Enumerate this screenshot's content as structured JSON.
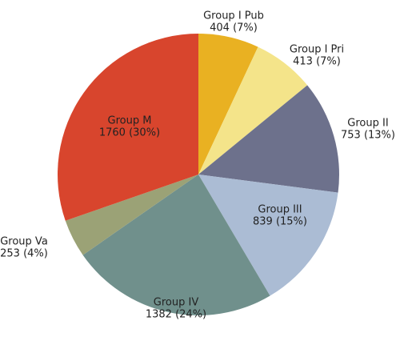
{
  "chart_data": {
    "type": "pie",
    "categories": [
      "Group I Pub",
      "Group I Pri",
      "Group II",
      "Group III",
      "Group IV",
      "Group Va",
      "Group M"
    ],
    "values": [
      404,
      413,
      753,
      839,
      1382,
      253,
      1760
    ],
    "value_labels": [
      "404 (7%)",
      "413 (7%)",
      "753 (13%)",
      "839 (15%)",
      "1382 (24%)",
      "253 (4%)",
      "1760 (30%)"
    ],
    "colors": [
      "#e9b122",
      "#f4e48a",
      "#6d718c",
      "#abbcd4",
      "#70908c",
      "#9ba276",
      "#d8452d"
    ]
  }
}
